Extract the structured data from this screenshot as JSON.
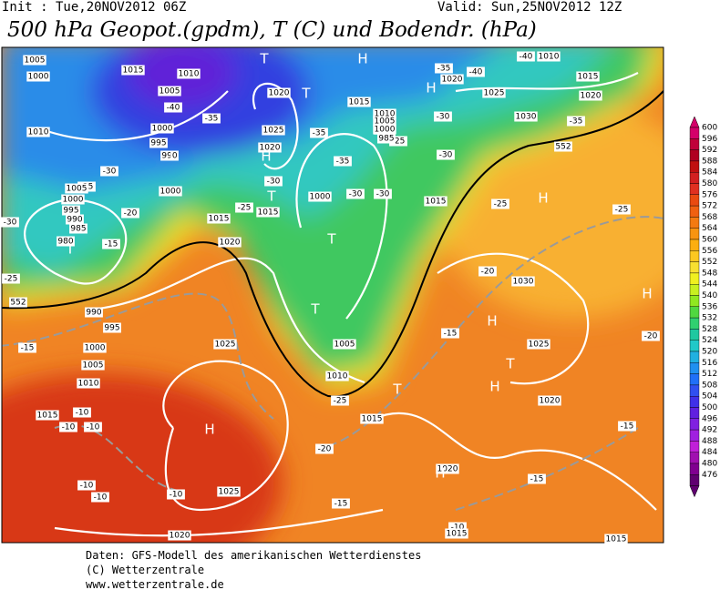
{
  "header": {
    "init": "Init : Tue,20NOV2012 06Z",
    "valid": "Valid: Sun,25NOV2012 12Z",
    "title": "500 hPa Geopot.(gpdm), T (C) und Bodendr. (hPa)"
  },
  "colorbar": {
    "labels": [
      "600",
      "596",
      "592",
      "588",
      "584",
      "580",
      "576",
      "572",
      "568",
      "564",
      "560",
      "556",
      "552",
      "548",
      "544",
      "540",
      "536",
      "532",
      "528",
      "524",
      "520",
      "516",
      "512",
      "508",
      "504",
      "500",
      "496",
      "492",
      "488",
      "484",
      "480",
      "476"
    ]
  },
  "map": {
    "labels": [
      "1005",
      "1000",
      "1015",
      "1010",
      "1005",
      "-40",
      "1000",
      "995",
      "990",
      "1000",
      "-35",
      "1020",
      "1025",
      "1020",
      "1010",
      "-30",
      "-25",
      "1005",
      "1000",
      "995",
      "990",
      "985",
      "980",
      "-20",
      "-15",
      "1015",
      "1020",
      "1015",
      "-25",
      "-30",
      "-35",
      "-35",
      "1000",
      "-30",
      "-30",
      "1005",
      "1010",
      "-25",
      "1015",
      "1015",
      "-35",
      "1020",
      "1025",
      "-40",
      "-40",
      "1010",
      "1015",
      "1020",
      "1030",
      "-35",
      "-30",
      "-25",
      "-30",
      "1015",
      "1010",
      "1005",
      "1000",
      "985",
      "1025",
      "990",
      "995",
      "1000",
      "1005",
      "1010",
      "1015",
      "-10",
      "-10",
      "-10",
      "-10",
      "-10",
      "-10",
      "1025",
      "1020",
      "-15",
      "-25",
      "-30",
      "-20",
      "1030",
      "1025",
      "1020",
      "-20",
      "-15",
      "-25",
      "-25",
      "-15",
      "-15",
      "-20",
      "-15",
      "-10",
      "1015",
      "1020",
      "1015",
      "552",
      "552",
      "H",
      "T",
      "T",
      "H",
      "T",
      "T",
      "H",
      "T",
      "T",
      "T",
      "T",
      "H",
      "T",
      "H",
      "T",
      "H",
      "H",
      "H",
      "H"
    ]
  },
  "footer": {
    "lines": [
      "Daten: GFS-Modell des amerikanischen Wetterdienstes",
      "(C) Wetterzentrale",
      "www.wetterzentrale.de"
    ]
  }
}
